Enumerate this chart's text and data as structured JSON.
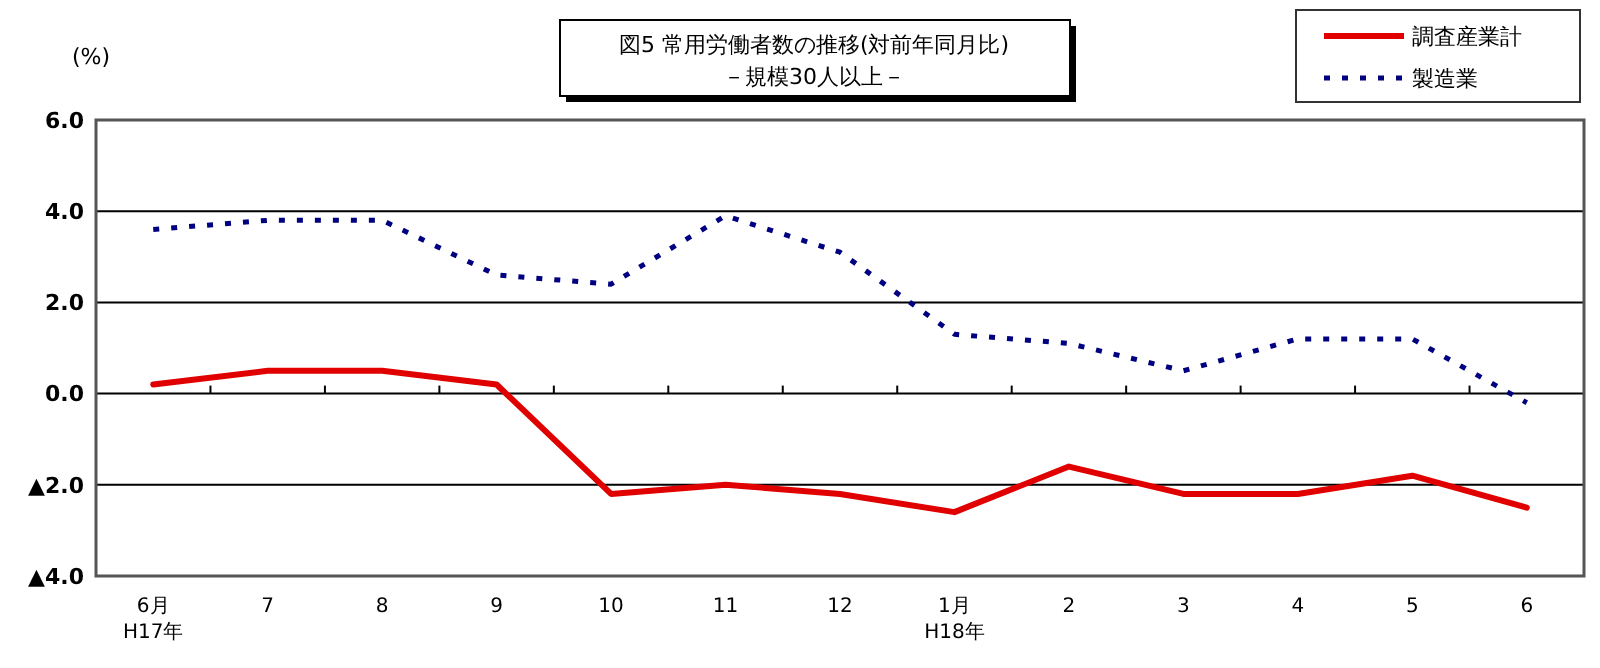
{
  "chart_data": {
    "type": "line",
    "title": "図5  常用労働者数の推移(対前年同月比)",
    "subtitle": "－規模30人以上－",
    "ylabel": "(%)",
    "categories": [
      "6月\nH17年",
      "7",
      "8",
      "9",
      "10",
      "11",
      "12",
      "1月\nH18年",
      "2",
      "3",
      "4",
      "5",
      "6"
    ],
    "series": [
      {
        "name": "調査産業計",
        "color": "#e00000",
        "line_style": "solid",
        "values": [
          0.2,
          0.5,
          0.5,
          0.2,
          -2.2,
          -2.0,
          -2.2,
          -2.6,
          -1.6,
          -2.2,
          -2.2,
          -1.8,
          -2.5
        ]
      },
      {
        "name": "製造業",
        "color": "#000080",
        "line_style": "dotted",
        "values": [
          3.6,
          3.8,
          3.8,
          2.6,
          2.4,
          3.9,
          3.1,
          1.3,
          1.1,
          0.5,
          1.2,
          1.2,
          -0.2
        ]
      }
    ],
    "ylim": [
      -4,
      6
    ],
    "yticks": [
      {
        "value": -4,
        "label": "▲4.0"
      },
      {
        "value": -2,
        "label": "▲2.0"
      },
      {
        "value": 0,
        "label": "0.0"
      },
      {
        "value": 2,
        "label": "2.0"
      },
      {
        "value": 4,
        "label": "4.0"
      },
      {
        "value": 6,
        "label": "6.0"
      }
    ],
    "grid": "y",
    "legend": "top right"
  }
}
